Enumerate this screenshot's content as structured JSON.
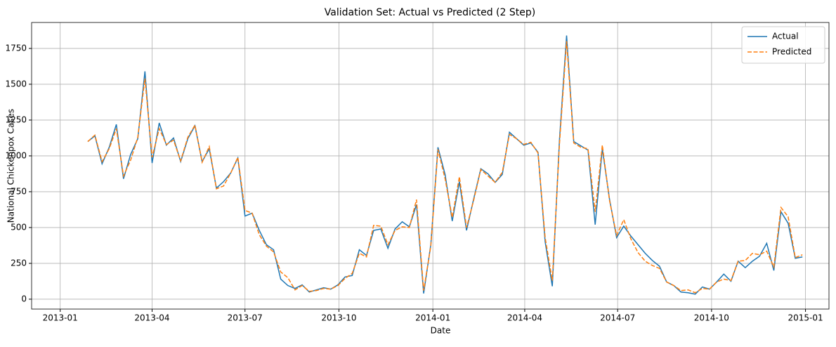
{
  "chart_data": {
    "type": "line",
    "title": "Validation Set: Actual vs Predicted (2 Step)",
    "xlabel": "Date",
    "ylabel": "National Chickenpox Cases",
    "x": [
      27,
      34,
      41,
      48,
      55,
      62,
      69,
      76,
      83,
      90,
      97,
      104,
      111,
      118,
      125,
      132,
      139,
      146,
      153,
      160,
      167,
      174,
      181,
      188,
      195,
      202,
      209,
      216,
      223,
      230,
      237,
      244,
      251,
      258,
      265,
      272,
      279,
      286,
      293,
      300,
      307,
      314,
      321,
      328,
      335,
      342,
      349,
      356,
      363,
      370,
      377,
      384,
      391,
      398,
      405,
      412,
      419,
      426,
      433,
      440,
      447,
      454,
      461,
      468,
      475,
      482,
      489,
      496,
      503,
      510,
      517,
      524,
      531,
      538,
      545,
      552,
      559,
      566,
      573,
      580,
      587,
      594,
      601,
      608,
      615,
      622,
      629,
      636,
      643,
      650,
      657,
      664,
      671,
      678,
      685,
      692,
      699,
      706,
      713,
      720,
      727
    ],
    "series": [
      {
        "name": "Actual",
        "color": "#1f77b4",
        "dash": false,
        "values": [
          1100,
          1140,
          945,
          1060,
          1220,
          840,
          1010,
          1120,
          1590,
          950,
          1230,
          1075,
          1125,
          960,
          1120,
          1210,
          960,
          1050,
          775,
          820,
          880,
          985,
          580,
          600,
          480,
          380,
          345,
          140,
          95,
          75,
          100,
          50,
          65,
          80,
          70,
          100,
          155,
          165,
          345,
          305,
          480,
          490,
          355,
          490,
          540,
          505,
          660,
          40,
          380,
          1060,
          870,
          545,
          820,
          480,
          700,
          910,
          875,
          815,
          870,
          1165,
          1120,
          1075,
          1090,
          1025,
          400,
          90,
          1110,
          1840,
          1100,
          1070,
          1040,
          520,
          1050,
          700,
          430,
          510,
          440,
          380,
          320,
          270,
          230,
          120,
          95,
          50,
          45,
          35,
          85,
          70,
          120,
          175,
          125,
          265,
          220,
          265,
          300,
          390,
          200,
          610,
          530,
          285,
          295
        ]
      },
      {
        "name": "Predicted",
        "color": "#ff7f0e",
        "dash": true,
        "values": [
          1100,
          1145,
          960,
          1050,
          1190,
          860,
          970,
          1130,
          1540,
          990,
          1190,
          1080,
          1110,
          965,
          1130,
          1215,
          955,
          1065,
          770,
          790,
          880,
          990,
          620,
          600,
          450,
          370,
          330,
          190,
          150,
          65,
          95,
          55,
          60,
          75,
          70,
          95,
          145,
          180,
          320,
          295,
          515,
          510,
          380,
          480,
          505,
          500,
          695,
          60,
          370,
          1045,
          840,
          570,
          855,
          500,
          690,
          905,
          860,
          815,
          885,
          1150,
          1120,
          1080,
          1095,
          1020,
          430,
          130,
          1080,
          1800,
          1090,
          1060,
          1050,
          610,
          1075,
          690,
          445,
          555,
          420,
          325,
          265,
          235,
          215,
          120,
          95,
          60,
          65,
          45,
          75,
          70,
          120,
          140,
          130,
          265,
          270,
          320,
          310,
          335,
          225,
          640,
          575,
          290,
          310
        ]
      }
    ],
    "xlim": [
      -28,
      753
    ],
    "xticks": [
      {
        "value": 0,
        "label": "2013-01"
      },
      {
        "value": 90,
        "label": "2013-04"
      },
      {
        "value": 181,
        "label": "2013-07"
      },
      {
        "value": 273,
        "label": "2013-10"
      },
      {
        "value": 365,
        "label": "2014-01"
      },
      {
        "value": 455,
        "label": "2014-04"
      },
      {
        "value": 546,
        "label": "2014-07"
      },
      {
        "value": 638,
        "label": "2014-10"
      },
      {
        "value": 730,
        "label": "2015-01"
      }
    ],
    "ylim": [
      -69,
      1931
    ],
    "yticks": [
      0,
      250,
      500,
      750,
      1000,
      1250,
      1500,
      1750
    ],
    "grid": true,
    "legend": "upper-right"
  }
}
